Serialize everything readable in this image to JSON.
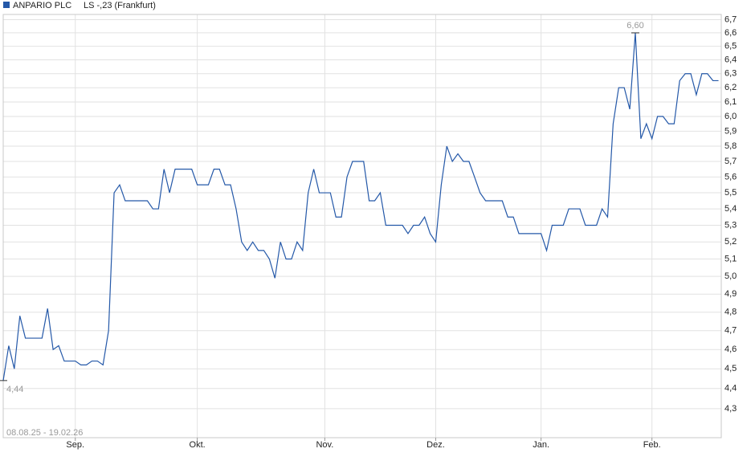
{
  "chart_data": {
    "type": "line",
    "subtitle": "LS -,23 (Frankfurt)",
    "date_range": "08.08.25 - 19.02.26",
    "log_scale": true,
    "grid": true,
    "series": [
      {
        "name": "ANPARIO PLC",
        "color": "#2458a8",
        "values": [
          4.44,
          4.62,
          4.5,
          4.78,
          4.66,
          4.66,
          4.66,
          4.66,
          4.82,
          4.6,
          4.62,
          4.54,
          4.54,
          4.54,
          4.52,
          4.52,
          4.54,
          4.54,
          4.52,
          4.7,
          5.5,
          5.55,
          5.45,
          5.45,
          5.45,
          5.45,
          5.45,
          5.4,
          5.4,
          5.65,
          5.5,
          5.65,
          5.65,
          5.65,
          5.65,
          5.55,
          5.55,
          5.55,
          5.65,
          5.65,
          5.55,
          5.55,
          5.4,
          5.2,
          5.15,
          5.2,
          5.15,
          5.15,
          5.1,
          4.99,
          5.2,
          5.1,
          5.1,
          5.2,
          5.15,
          5.5,
          5.65,
          5.5,
          5.5,
          5.5,
          5.35,
          5.35,
          5.6,
          5.7,
          5.7,
          5.7,
          5.45,
          5.45,
          5.5,
          5.3,
          5.3,
          5.3,
          5.3,
          5.25,
          5.3,
          5.3,
          5.35,
          5.25,
          5.2,
          5.55,
          5.8,
          5.7,
          5.75,
          5.7,
          5.7,
          5.6,
          5.5,
          5.45,
          5.45,
          5.45,
          5.45,
          5.35,
          5.35,
          5.25,
          5.25,
          5.25,
          5.25,
          5.25,
          5.15,
          5.3,
          5.3,
          5.3,
          5.4,
          5.4,
          5.4,
          5.3,
          5.3,
          5.3,
          5.4,
          5.35,
          5.95,
          6.2,
          6.2,
          6.05,
          6.6,
          5.85,
          5.95,
          5.85,
          6.0,
          6.0,
          5.95,
          5.95,
          6.25,
          6.3,
          6.3,
          6.15,
          6.3,
          6.3,
          6.25,
          6.25
        ]
      }
    ],
    "annotations": [
      {
        "x": 114,
        "value": 6.6,
        "label": "6,60"
      },
      {
        "x": 0,
        "value": 4.44,
        "label": "4,44"
      }
    ],
    "xlim": [
      0,
      129.5
    ],
    "xticks": [
      {
        "value": 13,
        "label": "Sep."
      },
      {
        "value": 35,
        "label": "Okt."
      },
      {
        "value": 58,
        "label": "Nov."
      },
      {
        "value": 78,
        "label": "Dez."
      },
      {
        "value": 97,
        "label": "Jan."
      },
      {
        "value": 117,
        "label": "Feb."
      }
    ],
    "ylim": [
      4.16,
      6.74
    ],
    "yticks": [
      {
        "value": 4.3,
        "label": "4,3"
      },
      {
        "value": 4.4,
        "label": "4,4"
      },
      {
        "value": 4.5,
        "label": "4,5"
      },
      {
        "value": 4.6,
        "label": "4,6"
      },
      {
        "value": 4.7,
        "label": "4,7"
      },
      {
        "value": 4.8,
        "label": "4,8"
      },
      {
        "value": 4.9,
        "label": "4,9"
      },
      {
        "value": 5.0,
        "label": "5,0"
      },
      {
        "value": 5.1,
        "label": "5,1"
      },
      {
        "value": 5.2,
        "label": "5,2"
      },
      {
        "value": 5.3,
        "label": "5,3"
      },
      {
        "value": 5.4,
        "label": "5,4"
      },
      {
        "value": 5.5,
        "label": "5,5"
      },
      {
        "value": 5.6,
        "label": "5,6"
      },
      {
        "value": 5.7,
        "label": "5,7"
      },
      {
        "value": 5.8,
        "label": "5,8"
      },
      {
        "value": 5.9,
        "label": "5,9"
      },
      {
        "value": 6.0,
        "label": "6,0"
      },
      {
        "value": 6.1,
        "label": "6,1"
      },
      {
        "value": 6.2,
        "label": "6,2"
      },
      {
        "value": 6.3,
        "label": "6,3"
      },
      {
        "value": 6.4,
        "label": "6,4"
      },
      {
        "value": 6.5,
        "label": "6,5"
      },
      {
        "value": 6.6,
        "label": "6,6"
      },
      {
        "value": 6.7,
        "label": "6,7"
      }
    ]
  }
}
